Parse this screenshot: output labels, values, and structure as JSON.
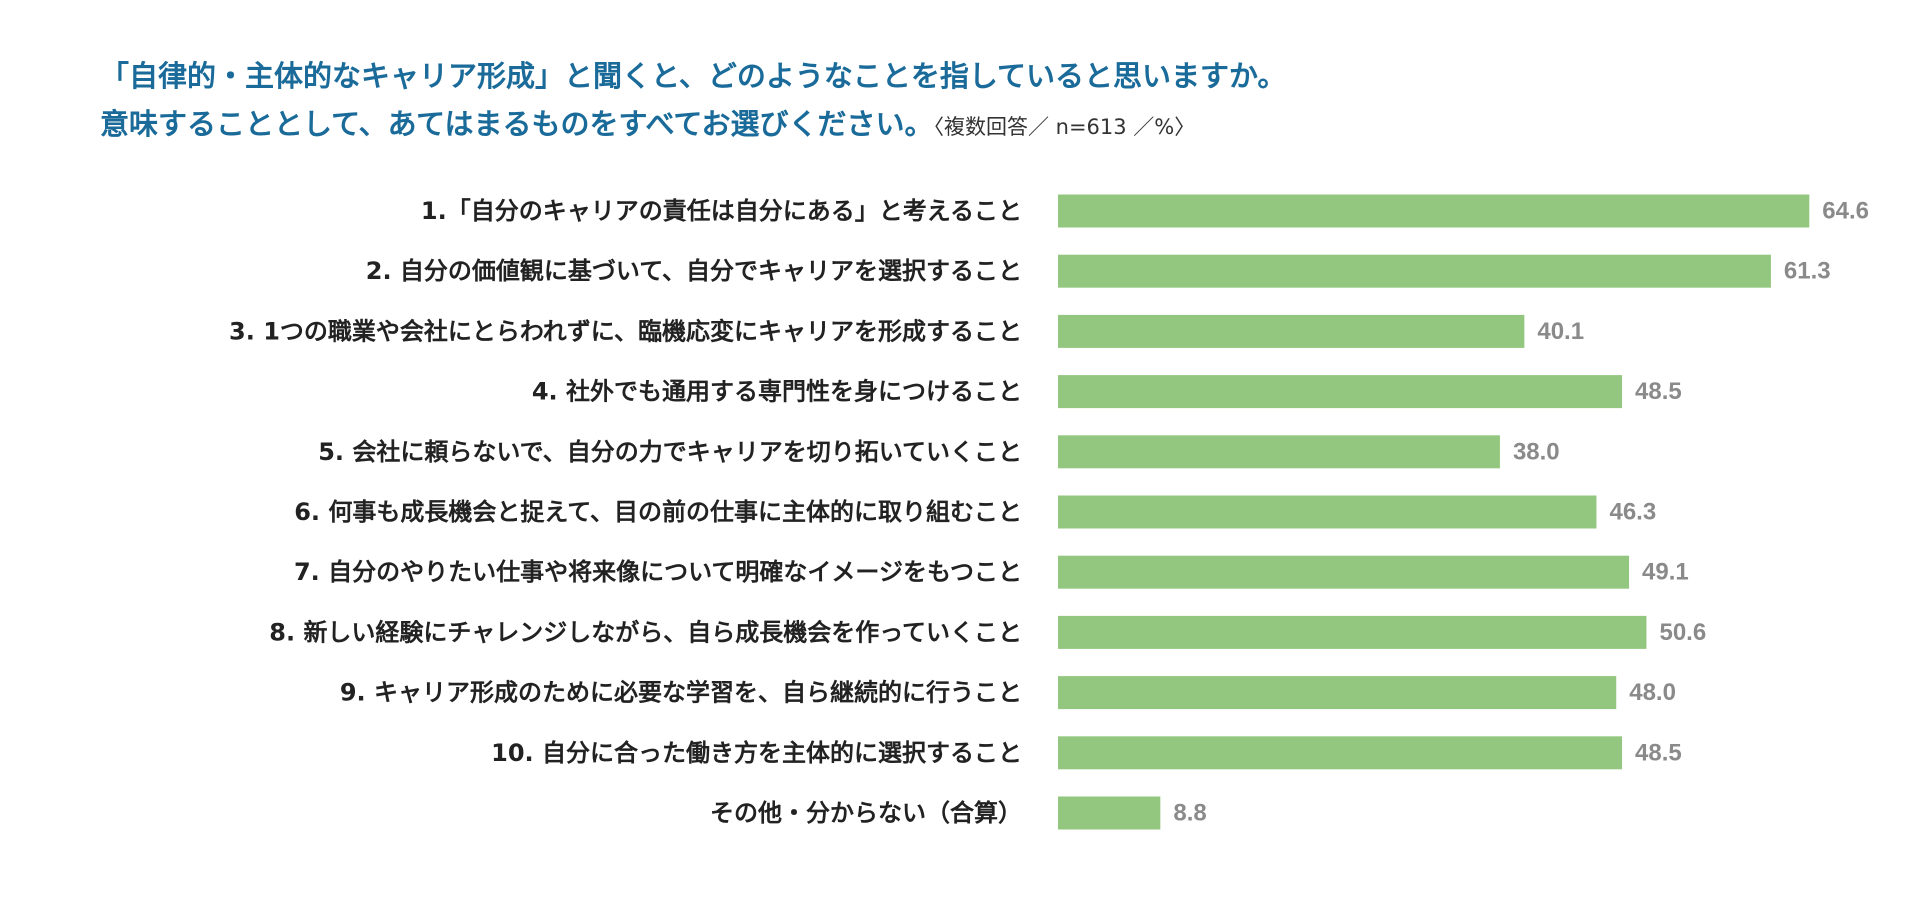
{
  "chart_data": {
    "type": "bar",
    "orientation": "horizontal",
    "title_line1": "「自律的・主体的なキャリア形成」と聞くと、どのようなことを指していると思いますか。",
    "title_line2": "意味することとして、あてはまるものをすべてお選びください。",
    "note": "〈複数回答／ n=613 ／%〉",
    "categories": [
      "1.「自分のキャリアの責任は自分にある」と考えること",
      "2. 自分の価値観に基づいて、自分でキャリアを選択すること",
      "3. 1つの職業や会社にとらわれずに、臨機応変にキャリアを形成すること",
      "4. 社外でも通用する専門性を身につけること",
      "5. 会社に頼らないで、自分の力でキャリアを切り拓いていくこと",
      "6. 何事も成長機会と捉えて、目の前の仕事に主体的に取り組むこと",
      "7. 自分のやりたい仕事や将来像について明確なイメージをもつこと",
      "8. 新しい経験にチャレンジしながら、自ら成長機会を作っていくこと",
      "9. キャリア形成のために必要な学習を、自ら継続的に行うこと",
      "10. 自分に合った働き方を主体的に選択すること",
      "その他・分からない（合算）"
    ],
    "values": [
      64.6,
      61.3,
      40.1,
      48.5,
      38.0,
      46.3,
      49.1,
      50.6,
      48.0,
      48.5,
      8.8
    ],
    "value_labels": [
      "64.6",
      "61.3",
      "40.1",
      "48.5",
      "38.0",
      "46.3",
      "49.1",
      "50.6",
      "48.0",
      "48.5",
      "8.8"
    ],
    "xlim": [
      0,
      100
    ],
    "bar_color": "#93c77f",
    "label_color": "#222222",
    "value_color": "#8a8a8a",
    "grid": false,
    "legend": "none"
  }
}
